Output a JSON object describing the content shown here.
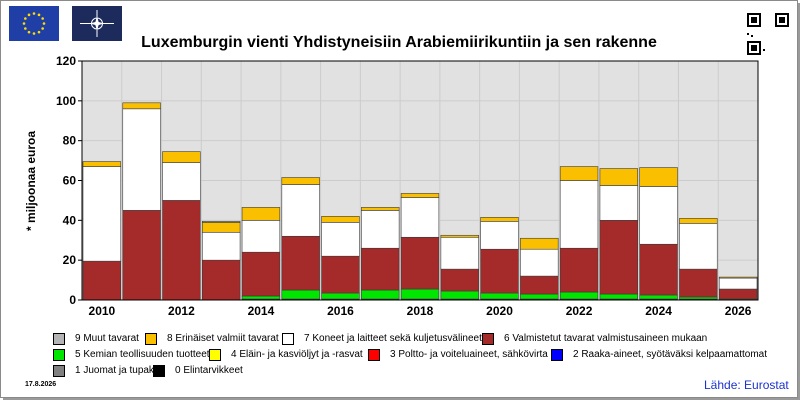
{
  "header": {
    "title": "Luxemburgin vienti Yhdistyneisiin Arabiemiirikuntiin ja sen rakenne",
    "logo_left": "eu-flag-icon",
    "logo_right": "nato-flag-icon",
    "qr": "qr-code-icon"
  },
  "footer": {
    "date": "17.8.2026",
    "source": "Lähde: Eurostat"
  },
  "colors": {
    "s9": "#b4b4b4",
    "s8": "#fac000",
    "s7": "#ffffff",
    "s6": "#a52a2a",
    "s5": "#00e600",
    "s4": "#ffff00",
    "s3": "#ff0000",
    "s2": "#0000ff",
    "s1": "#808080",
    "s0": "#000000",
    "plot_bg": "#e1e1e1",
    "grid": "#cccccc"
  },
  "chart_data": {
    "type": "bar",
    "stacked": true,
    "title": "Luxemburgin vienti Yhdistyneisiin Arabiemiirikuntiin ja sen rakenne",
    "ylabel": "* miljoonaa euroa",
    "xlabel": "",
    "ylim": [
      0,
      120
    ],
    "yticks": [
      0,
      20,
      40,
      60,
      80,
      100,
      120
    ],
    "grid": true,
    "categories": [
      "2010",
      "2011",
      "2012",
      "2013",
      "2014",
      "2015",
      "2016",
      "2017",
      "2018",
      "2019",
      "2020",
      "2021",
      "2022",
      "2023",
      "2024",
      "2025",
      "2026"
    ],
    "xtick_labels": [
      "2010",
      "",
      "2012",
      "",
      "2014",
      "",
      "2016",
      "",
      "2018",
      "",
      "2020",
      "",
      "2022",
      "",
      "2024",
      "",
      "2026"
    ],
    "series": [
      {
        "key": "s0",
        "name": "0 Elintarvikkeet",
        "values": [
          0,
          0,
          0,
          0,
          0.5,
          0.5,
          0.5,
          0.5,
          0.5,
          0.5,
          0.5,
          0.5,
          0.5,
          0.5,
          0.5,
          0.5,
          0
        ]
      },
      {
        "key": "s1",
        "name": "1 Juomat ja tupakka",
        "values": [
          0,
          0,
          0,
          0,
          0,
          0,
          0,
          0,
          0,
          0,
          0,
          0,
          0,
          0,
          0,
          0,
          0
        ]
      },
      {
        "key": "s2",
        "name": "2 Raaka-aineet, syötäväksi kelpaamattomat",
        "values": [
          0,
          0,
          0,
          0,
          0,
          0,
          0,
          0,
          0,
          0,
          0,
          0,
          0,
          0,
          0,
          0,
          0
        ]
      },
      {
        "key": "s3",
        "name": "3 Poltto- ja voiteluaineet, sähkövirta",
        "values": [
          0,
          0,
          0,
          0,
          0,
          0,
          0,
          0,
          0,
          0,
          0,
          0,
          0,
          0,
          0,
          0,
          0
        ]
      },
      {
        "key": "s4",
        "name": "4 Eläin- ja kasviöljyt ja -rasvat",
        "values": [
          0,
          0,
          0,
          0,
          0,
          0,
          0,
          0,
          0,
          0,
          0,
          0,
          0,
          0,
          0,
          0,
          0
        ]
      },
      {
        "key": "s5",
        "name": "5 Kemian teollisuuden tuotteet",
        "values": [
          0,
          0,
          0,
          0,
          1.5,
          4.5,
          3,
          4.5,
          5,
          4,
          3,
          2.5,
          3.5,
          2.5,
          2,
          1,
          0.5
        ]
      },
      {
        "key": "s6",
        "name": "6 Valmistetut tavarat valmistusaineen mukaan",
        "values": [
          19.5,
          45,
          50,
          20,
          22,
          27,
          18.5,
          21,
          26,
          11,
          22,
          9,
          22,
          37,
          25.5,
          14,
          5
        ]
      },
      {
        "key": "s7",
        "name": "7 Koneet ja laitteet sekä kuljetusvälineet",
        "values": [
          47.5,
          51,
          19,
          14,
          16,
          26,
          17,
          19,
          20,
          16,
          14,
          13.5,
          34,
          17.5,
          29,
          23,
          5.5
        ]
      },
      {
        "key": "s8",
        "name": "8 Erinäiset valmiit tavarat",
        "values": [
          2.5,
          3,
          5.5,
          5,
          6.5,
          3.5,
          3,
          1.5,
          2,
          1,
          2,
          5.5,
          7,
          8.5,
          9.5,
          2.5,
          0.5
        ]
      },
      {
        "key": "s9",
        "name": "9 Muut tavarat",
        "values": [
          0,
          0,
          0,
          0.5,
          0,
          0,
          0,
          0,
          0,
          0,
          0,
          0,
          0,
          0,
          0,
          0,
          0
        ]
      }
    ]
  }
}
